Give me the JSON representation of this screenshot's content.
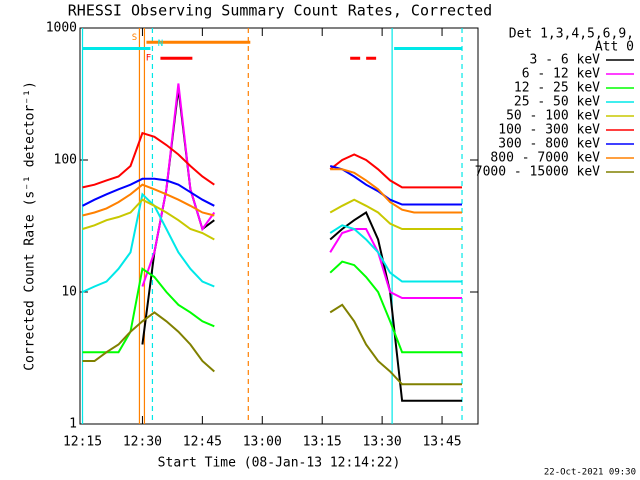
{
  "chart_data": {
    "type": "line",
    "title": "RHESSI Observing Summary Count Rates, Corrected",
    "x_label": "Start Time (08-Jan-13 12:14:22)",
    "y_label": "Corrected Count Rate (s⁻¹ detector⁻¹)",
    "legend_title": [
      "Det 1,3,4,5,6,9,",
      "Att 0"
    ],
    "footer": "22-Oct-2021 09:30",
    "log_y": true,
    "xlim": [
      734.37,
      834
    ],
    "ylim": [
      1,
      1000
    ],
    "xticks": [
      {
        "value": 735,
        "label": "12:15"
      },
      {
        "value": 750,
        "label": "12:30"
      },
      {
        "value": 765,
        "label": "12:45"
      },
      {
        "value": 780,
        "label": "13:00"
      },
      {
        "value": 795,
        "label": "13:15"
      },
      {
        "value": 810,
        "label": "13:30"
      },
      {
        "value": 825,
        "label": "13:45"
      }
    ],
    "yticks": [
      1,
      10,
      100,
      1000
    ],
    "x": [
      735,
      738,
      741,
      744,
      747,
      750,
      753,
      756,
      759,
      762,
      765,
      768,
      783,
      797,
      800,
      803,
      806,
      809,
      812,
      815,
      818,
      821,
      824,
      827,
      830
    ],
    "series": [
      {
        "name": "3 - 6 keV",
        "color": "#000000",
        "values": [
          null,
          null,
          null,
          null,
          null,
          4,
          20,
          60,
          350,
          60,
          30,
          35,
          null,
          25,
          30,
          35,
          40,
          25,
          10,
          1.5,
          1.5,
          1.5,
          1.5,
          1.5,
          1.5
        ]
      },
      {
        "name": "6 - 12 keV",
        "color": "#ff00ff",
        "values": [
          null,
          null,
          null,
          null,
          null,
          11,
          20,
          60,
          380,
          60,
          30,
          40,
          null,
          20,
          28,
          30,
          30,
          20,
          10,
          9,
          9,
          9,
          9,
          9,
          9
        ]
      },
      {
        "name": "12 - 25 keV",
        "color": "#00ff00",
        "values": [
          3.5,
          3.5,
          3.5,
          3.5,
          5,
          15,
          13,
          10,
          8,
          7,
          6,
          5.5,
          null,
          14,
          17,
          16,
          13,
          10,
          6,
          3.5,
          3.5,
          3.5,
          3.5,
          3.5,
          3.5
        ]
      },
      {
        "name": "25 - 50 keV",
        "color": "#00e8e8",
        "values": [
          10,
          11,
          12,
          15,
          20,
          55,
          45,
          30,
          20,
          15,
          12,
          11,
          null,
          28,
          32,
          30,
          25,
          20,
          14,
          12,
          12,
          12,
          12,
          12,
          12
        ]
      },
      {
        "name": "50 - 100 keV",
        "color": "#c8c800",
        "values": [
          30,
          32,
          35,
          37,
          40,
          50,
          45,
          40,
          35,
          30,
          28,
          25,
          null,
          40,
          45,
          50,
          45,
          40,
          33,
          30,
          30,
          30,
          30,
          30,
          30
        ]
      },
      {
        "name": "100 - 300 keV",
        "color": "#ff0000",
        "values": [
          62,
          65,
          70,
          75,
          90,
          160,
          150,
          130,
          110,
          90,
          75,
          65,
          null,
          85,
          100,
          110,
          100,
          85,
          70,
          62,
          62,
          62,
          62,
          62,
          62
        ]
      },
      {
        "name": "300 - 800 keV",
        "color": "#0000ff",
        "values": [
          45,
          50,
          55,
          60,
          65,
          72,
          72,
          70,
          65,
          57,
          50,
          45,
          null,
          90,
          85,
          75,
          65,
          58,
          50,
          46,
          46,
          46,
          46,
          46,
          46
        ]
      },
      {
        "name": "800 - 7000 keV",
        "color": "#ff8000",
        "values": [
          38,
          40,
          43,
          48,
          55,
          65,
          60,
          55,
          50,
          45,
          40,
          38,
          null,
          85,
          85,
          80,
          70,
          60,
          48,
          42,
          40,
          40,
          40,
          40,
          40
        ]
      },
      {
        "name": "7000 - 15000 keV",
        "color": "#808000",
        "values": [
          3,
          3,
          3.5,
          4,
          5,
          6,
          7,
          6,
          5,
          4,
          3,
          2.5,
          null,
          7,
          8,
          6,
          4,
          3,
          2.5,
          2,
          2,
          2,
          2,
          2,
          2
        ]
      }
    ],
    "vlines": [
      {
        "x": 735,
        "color": "#00e8e8",
        "dashed": false
      },
      {
        "x": 752.5,
        "color": "#00e8e8",
        "dashed": true
      },
      {
        "x": 812.5,
        "color": "#00e8e8",
        "dashed": false
      },
      {
        "x": 830,
        "color": "#00e8e8",
        "dashed": true
      },
      {
        "x": 749.25,
        "color": "#ff8000",
        "dashed": false
      },
      {
        "x": 750.5,
        "color": "#ff8000",
        "dashed": false
      },
      {
        "x": 776.5,
        "color": "#ff8000",
        "dashed": true
      }
    ],
    "flag_bars": [
      {
        "x": [
          735,
          752
        ],
        "y": 700,
        "color": "#00e8e8"
      },
      {
        "x": [
          813,
          830
        ],
        "y": 700,
        "color": "#00e8e8"
      },
      {
        "x": [
          751,
          777
        ],
        "y": 780,
        "color": "#ff8000"
      },
      {
        "x": [
          754.5,
          762.5
        ],
        "y": 590,
        "color": "#ff0000"
      },
      {
        "x": [
          802,
          804.5
        ],
        "y": 590,
        "color": "#ff0000"
      },
      {
        "x": [
          806,
          808.5
        ],
        "y": 590,
        "color": "#ff0000"
      }
    ],
    "flag_labels": [
      {
        "text": "N",
        "x": 754.5,
        "y": 760,
        "color": "#00e8e8"
      },
      {
        "text": "F",
        "x": 751.5,
        "y": 590,
        "color": "#ff0000"
      },
      {
        "text": "S",
        "x": 748,
        "y": 850,
        "color": "#ff8000"
      }
    ]
  }
}
